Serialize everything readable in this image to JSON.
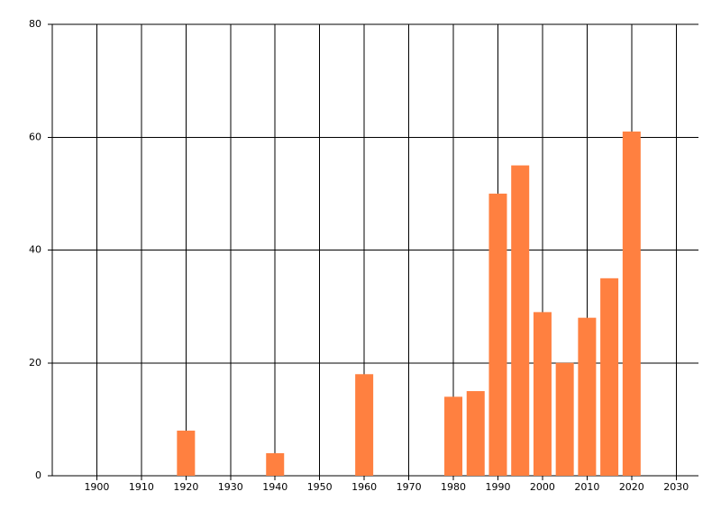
{
  "chart_data": {
    "type": "bar",
    "x": [
      1920,
      1940,
      1960,
      1980,
      1985,
      1990,
      1995,
      2000,
      2005,
      2010,
      2015,
      2020
    ],
    "values": [
      8,
      4,
      18,
      14,
      15,
      50,
      55,
      29,
      20,
      28,
      35,
      61
    ],
    "color": "#ff8040",
    "xlim": [
      1890,
      2035
    ],
    "xticks": [
      1900,
      1910,
      1920,
      1930,
      1940,
      1950,
      1960,
      1970,
      1980,
      1990,
      2000,
      2010,
      2020,
      2030
    ],
    "ylim": [
      0,
      80
    ],
    "yticks": [
      0,
      20,
      40,
      60,
      80
    ],
    "grid": true
  }
}
